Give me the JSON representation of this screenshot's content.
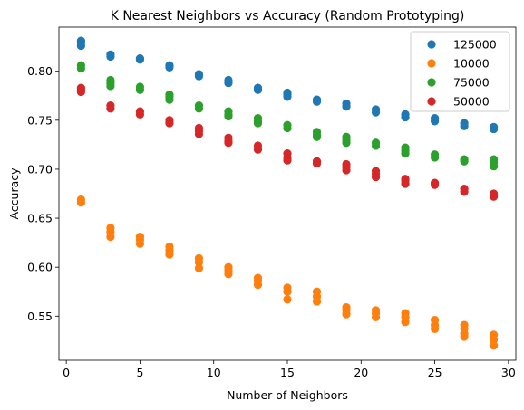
{
  "chart_data": {
    "type": "scatter",
    "title": "K Nearest Neighbors vs Accuracy (Random Prototyping)",
    "xlabel": "Number of Neighbors",
    "ylabel": "Accuracy",
    "xlim": [
      -0.5,
      30.5
    ],
    "ylim": [
      0.505,
      0.845
    ],
    "xticks": [
      0,
      5,
      10,
      15,
      20,
      25,
      30
    ],
    "yticks": [
      0.55,
      0.6,
      0.65,
      0.7,
      0.75,
      0.8
    ],
    "grid": false,
    "legend_position": "top-right",
    "x": [
      1,
      3,
      5,
      7,
      9,
      11,
      13,
      15,
      17,
      19,
      21,
      23,
      25,
      27,
      29
    ],
    "series": [
      {
        "name": "125000",
        "color": "#1f77b4",
        "points": [
          [
            1,
            0.831
          ],
          [
            1,
            0.829
          ],
          [
            1,
            0.826
          ],
          [
            3,
            0.817
          ],
          [
            3,
            0.815
          ],
          [
            5,
            0.813
          ],
          [
            5,
            0.812
          ],
          [
            7,
            0.806
          ],
          [
            7,
            0.804
          ],
          [
            9,
            0.797
          ],
          [
            9,
            0.795
          ],
          [
            11,
            0.791
          ],
          [
            11,
            0.788
          ],
          [
            13,
            0.783
          ],
          [
            13,
            0.781
          ],
          [
            15,
            0.778
          ],
          [
            15,
            0.776
          ],
          [
            15,
            0.774
          ],
          [
            17,
            0.771
          ],
          [
            17,
            0.769
          ],
          [
            19,
            0.767
          ],
          [
            19,
            0.764
          ],
          [
            21,
            0.761
          ],
          [
            21,
            0.758
          ],
          [
            23,
            0.756
          ],
          [
            23,
            0.753
          ],
          [
            25,
            0.752
          ],
          [
            25,
            0.749
          ],
          [
            27,
            0.747
          ],
          [
            27,
            0.744
          ],
          [
            29,
            0.743
          ],
          [
            29,
            0.741
          ]
        ]
      },
      {
        "name": "10000",
        "color": "#ff7f0e",
        "points": [
          [
            1,
            0.669
          ],
          [
            1,
            0.666
          ],
          [
            3,
            0.64
          ],
          [
            3,
            0.636
          ],
          [
            3,
            0.631
          ],
          [
            5,
            0.631
          ],
          [
            5,
            0.628
          ],
          [
            5,
            0.624
          ],
          [
            7,
            0.621
          ],
          [
            7,
            0.617
          ],
          [
            7,
            0.613
          ],
          [
            9,
            0.609
          ],
          [
            9,
            0.605
          ],
          [
            9,
            0.599
          ],
          [
            11,
            0.6
          ],
          [
            11,
            0.597
          ],
          [
            11,
            0.593
          ],
          [
            13,
            0.589
          ],
          [
            13,
            0.586
          ],
          [
            13,
            0.582
          ],
          [
            15,
            0.579
          ],
          [
            15,
            0.575
          ],
          [
            15,
            0.567
          ],
          [
            17,
            0.575
          ],
          [
            17,
            0.57
          ],
          [
            17,
            0.565
          ],
          [
            19,
            0.559
          ],
          [
            19,
            0.556
          ],
          [
            19,
            0.552
          ],
          [
            21,
            0.556
          ],
          [
            21,
            0.553
          ],
          [
            21,
            0.549
          ],
          [
            23,
            0.553
          ],
          [
            23,
            0.549
          ],
          [
            23,
            0.544
          ],
          [
            25,
            0.546
          ],
          [
            25,
            0.541
          ],
          [
            25,
            0.537
          ],
          [
            27,
            0.541
          ],
          [
            27,
            0.537
          ],
          [
            27,
            0.532
          ],
          [
            27,
            0.529
          ],
          [
            29,
            0.531
          ],
          [
            29,
            0.526
          ],
          [
            29,
            0.52
          ]
        ]
      },
      {
        "name": "75000",
        "color": "#2ca02c",
        "points": [
          [
            1,
            0.806
          ],
          [
            1,
            0.803
          ],
          [
            3,
            0.791
          ],
          [
            3,
            0.788
          ],
          [
            3,
            0.785
          ],
          [
            5,
            0.784
          ],
          [
            5,
            0.781
          ],
          [
            7,
            0.776
          ],
          [
            7,
            0.774
          ],
          [
            7,
            0.771
          ],
          [
            9,
            0.765
          ],
          [
            9,
            0.762
          ],
          [
            11,
            0.759
          ],
          [
            11,
            0.756
          ],
          [
            11,
            0.754
          ],
          [
            13,
            0.752
          ],
          [
            13,
            0.749
          ],
          [
            13,
            0.747
          ],
          [
            15,
            0.745
          ],
          [
            15,
            0.742
          ],
          [
            17,
            0.738
          ],
          [
            17,
            0.735
          ],
          [
            17,
            0.733
          ],
          [
            19,
            0.733
          ],
          [
            19,
            0.73
          ],
          [
            19,
            0.727
          ],
          [
            21,
            0.727
          ],
          [
            21,
            0.724
          ],
          [
            23,
            0.722
          ],
          [
            23,
            0.719
          ],
          [
            23,
            0.716
          ],
          [
            25,
            0.715
          ],
          [
            25,
            0.712
          ],
          [
            27,
            0.71
          ],
          [
            27,
            0.708
          ],
          [
            29,
            0.71
          ],
          [
            29,
            0.707
          ],
          [
            29,
            0.703
          ]
        ]
      },
      {
        "name": "50000",
        "color": "#d62728",
        "points": [
          [
            1,
            0.783
          ],
          [
            1,
            0.781
          ],
          [
            1,
            0.779
          ],
          [
            3,
            0.765
          ],
          [
            3,
            0.762
          ],
          [
            5,
            0.759
          ],
          [
            5,
            0.756
          ],
          [
            7,
            0.75
          ],
          [
            7,
            0.747
          ],
          [
            9,
            0.742
          ],
          [
            9,
            0.739
          ],
          [
            9,
            0.736
          ],
          [
            11,
            0.732
          ],
          [
            11,
            0.729
          ],
          [
            11,
            0.727
          ],
          [
            13,
            0.724
          ],
          [
            13,
            0.72
          ],
          [
            15,
            0.716
          ],
          [
            15,
            0.712
          ],
          [
            15,
            0.709
          ],
          [
            17,
            0.708
          ],
          [
            17,
            0.706
          ],
          [
            19,
            0.705
          ],
          [
            19,
            0.702
          ],
          [
            19,
            0.699
          ],
          [
            21,
            0.698
          ],
          [
            21,
            0.695
          ],
          [
            21,
            0.692
          ],
          [
            23,
            0.69
          ],
          [
            23,
            0.688
          ],
          [
            23,
            0.685
          ],
          [
            25,
            0.686
          ],
          [
            25,
            0.684
          ],
          [
            27,
            0.68
          ],
          [
            27,
            0.677
          ],
          [
            29,
            0.675
          ],
          [
            29,
            0.672
          ]
        ]
      }
    ]
  }
}
